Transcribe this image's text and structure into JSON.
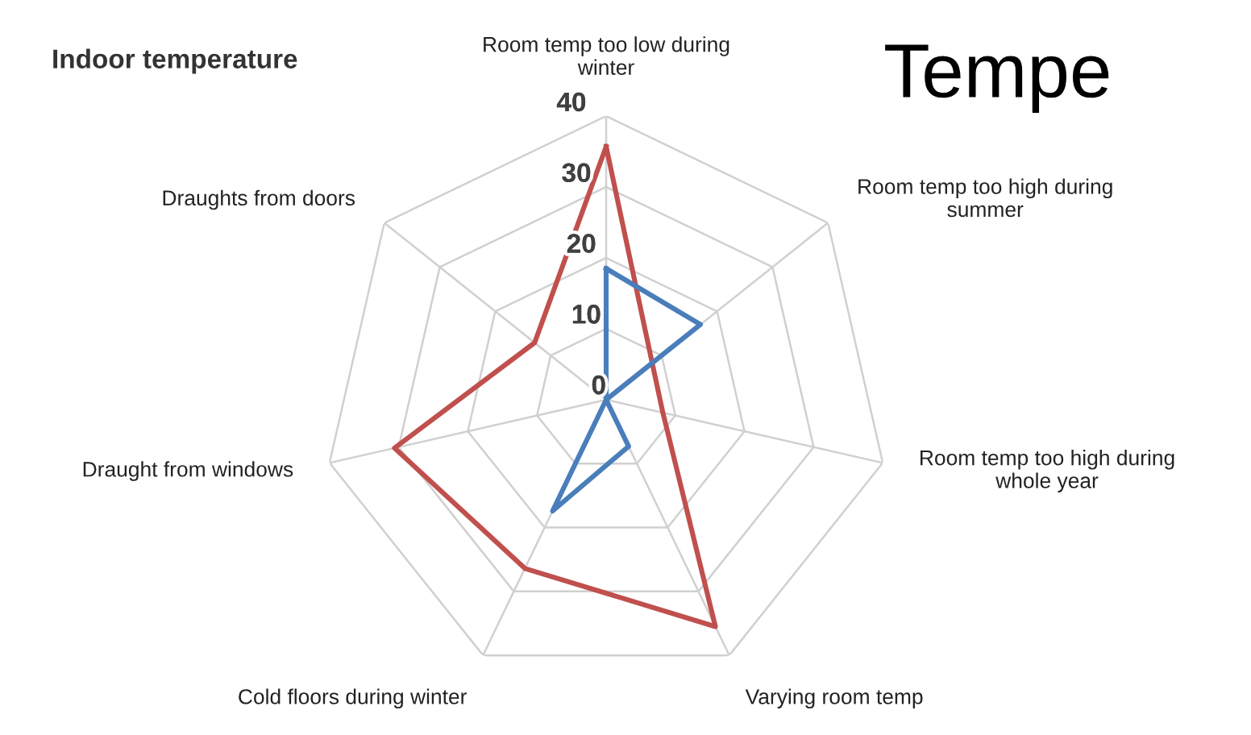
{
  "chart_data": {
    "type": "radar",
    "title": "Indoor temperature",
    "annotations": [
      "Tempe"
    ],
    "categories": [
      "Room temp too low during\nwinter",
      "Room temp too high during\nsummer",
      "Room temp too high during\nwhole year",
      "Varying room temp",
      "Cold floors during winter",
      "Draught from windows",
      "Draughts from doors"
    ],
    "series": [
      {
        "color": "#c0504d",
        "values": [
          35.7,
          8.3,
          8.2,
          35.5,
          26.4,
          30.6,
          12.9
        ]
      },
      {
        "color": "#4a7ebb",
        "values": [
          18.5,
          17,
          0,
          7.3,
          17.4,
          0,
          0
        ]
      }
    ],
    "ylim": [
      0,
      40
    ],
    "yticks": [
      0,
      10,
      20,
      30,
      40
    ],
    "grid": true,
    "legend": false,
    "marker": "none"
  }
}
